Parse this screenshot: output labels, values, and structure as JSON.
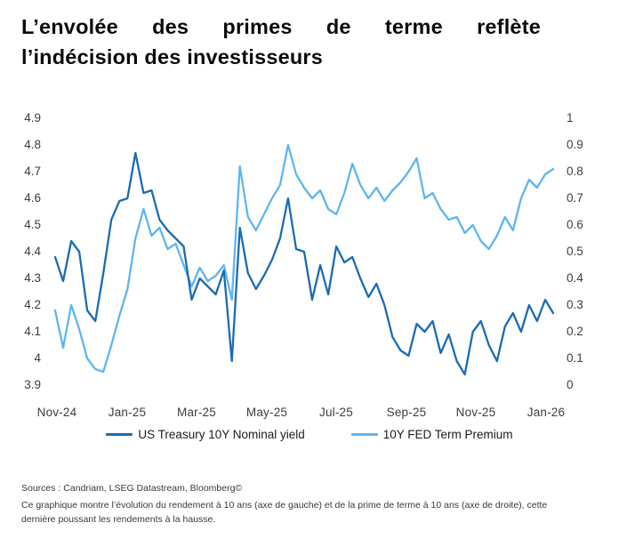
{
  "title": {
    "line1": "L’envolée des primes de terme reflète",
    "line2": "l’indécision des investisseurs"
  },
  "legend": {
    "series1_label": "US Treasury 10Y Nominal yield",
    "series2_label": "10Y FED Term Premium"
  },
  "footer": {
    "sources": "Sources : Candriam, LSEG Datastream, Bloomberg©",
    "description": "Ce graphique montre l’évolution du rendement à 10 ans (axe de gauche) et de la prime de terme à 10 ans (axe de droite), cette dernière poussant les rendements à la hausse."
  },
  "chart_data": {
    "type": "line",
    "grid": false,
    "legend_position": "bottom",
    "x_tick_labels": [
      "Nov-24",
      "Jan-25",
      "Mar-25",
      "May-25",
      "Jul-25",
      "Sep-25",
      "Nov-25",
      "Jan-26"
    ],
    "left_axis": {
      "label": "US Treasury 10Y Nominal yield (axe de gauche)",
      "range": [
        3.9,
        4.9
      ],
      "ticks": [
        "4.9",
        "4.8",
        "4.7",
        "4.6",
        "4.5",
        "4.4",
        "4.3",
        "4.2",
        "4.1",
        "4",
        "3.9"
      ]
    },
    "right_axis": {
      "label": "10Y FED Term Premium (axe de droite)",
      "range": [
        0,
        1
      ],
      "ticks": [
        "1",
        "0.9",
        "0.8",
        "0.7",
        "0.6",
        "0.5",
        "0.4",
        "0.3",
        "0.2",
        "0.1",
        "0"
      ]
    },
    "x": [
      "2024-11-01",
      "2024-11-08",
      "2024-11-15",
      "2024-11-22",
      "2024-11-29",
      "2024-12-06",
      "2024-12-13",
      "2024-12-20",
      "2024-12-27",
      "2025-01-03",
      "2025-01-10",
      "2025-01-17",
      "2025-01-24",
      "2025-01-31",
      "2025-02-07",
      "2025-02-14",
      "2025-02-21",
      "2025-02-28",
      "2025-03-07",
      "2025-03-14",
      "2025-03-21",
      "2025-03-28",
      "2025-04-04",
      "2025-04-11",
      "2025-04-18",
      "2025-04-25",
      "2025-05-02",
      "2025-05-09",
      "2025-05-16",
      "2025-05-23",
      "2025-05-30",
      "2025-06-06",
      "2025-06-13",
      "2025-06-20",
      "2025-06-27",
      "2025-07-04",
      "2025-07-11",
      "2025-07-18",
      "2025-07-25",
      "2025-08-01",
      "2025-08-08",
      "2025-08-15",
      "2025-08-22",
      "2025-08-29",
      "2025-09-05",
      "2025-09-12",
      "2025-09-19",
      "2025-09-26",
      "2025-10-03",
      "2025-10-10",
      "2025-10-17",
      "2025-10-24",
      "2025-10-31",
      "2025-11-07",
      "2025-11-14",
      "2025-11-21",
      "2025-11-28",
      "2025-12-05",
      "2025-12-12",
      "2025-12-19",
      "2025-12-26",
      "2026-01-02",
      "2026-01-09"
    ],
    "series": [
      {
        "name": "US Treasury 10Y Nominal yield",
        "axis": "left",
        "color": "#1a6cb4",
        "values": [
          4.38,
          4.29,
          4.44,
          4.4,
          4.18,
          4.14,
          4.32,
          4.52,
          4.59,
          4.6,
          4.77,
          4.62,
          4.63,
          4.52,
          4.48,
          4.45,
          4.42,
          4.22,
          4.3,
          4.27,
          4.24,
          4.33,
          3.99,
          4.49,
          4.32,
          4.26,
          4.31,
          4.37,
          4.45,
          4.6,
          4.41,
          4.4,
          4.22,
          4.35,
          4.24,
          4.42,
          4.36,
          4.38,
          4.3,
          4.23,
          4.28,
          4.2,
          4.08,
          4.03,
          4.01,
          4.13,
          4.1,
          4.14,
          4.02,
          4.09,
          3.99,
          3.94,
          4.1,
          4.14,
          4.05,
          3.99,
          4.12,
          4.17,
          4.1,
          4.2,
          4.14,
          4.22,
          4.17
        ]
      },
      {
        "name": "10Y FED Term Premium",
        "axis": "right",
        "color": "#5fb5f1",
        "values": [
          0.28,
          0.14,
          0.3,
          0.21,
          0.1,
          0.06,
          0.05,
          0.15,
          0.26,
          0.36,
          0.55,
          0.66,
          0.56,
          0.59,
          0.51,
          0.53,
          0.45,
          0.37,
          0.44,
          0.39,
          0.41,
          0.45,
          0.32,
          0.82,
          0.63,
          0.58,
          0.64,
          0.7,
          0.75,
          0.9,
          0.79,
          0.74,
          0.7,
          0.73,
          0.66,
          0.64,
          0.72,
          0.83,
          0.75,
          0.7,
          0.74,
          0.69,
          0.73,
          0.76,
          0.8,
          0.85,
          0.7,
          0.72,
          0.66,
          0.62,
          0.63,
          0.57,
          0.6,
          0.54,
          0.51,
          0.56,
          0.63,
          0.58,
          0.7,
          0.77,
          0.74,
          0.79,
          0.81
        ]
      }
    ]
  }
}
